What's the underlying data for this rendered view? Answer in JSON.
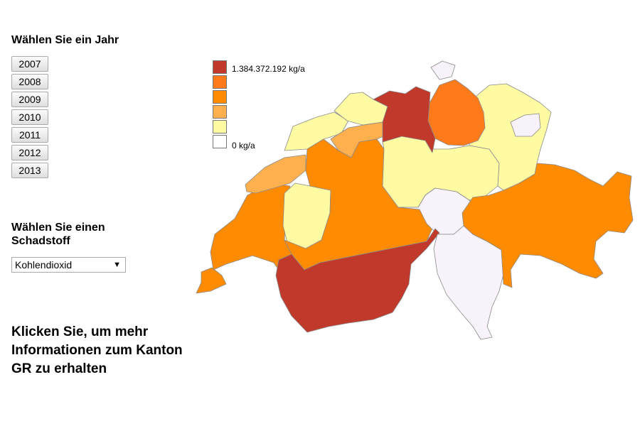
{
  "sidebar": {
    "year_heading": "Wählen Sie ein Jahr",
    "years": [
      "2007",
      "2008",
      "2009",
      "2010",
      "2011",
      "2012",
      "2013"
    ],
    "pollutant_heading": "Wählen Sie einen Schadstoff",
    "pollutant_selected": "Kohlendioxid",
    "cta_text": "Klicken Sie, um mehr Informationen zum Kanton GR zu erhalten"
  },
  "legend": {
    "max_label": "1.384.372.192 kg/a",
    "min_label": "0 kg/a",
    "scale_colors": [
      "#c0392b",
      "#fe7a1a",
      "#fe8b02",
      "#feb04e",
      "#fefba3",
      "#ffffff"
    ]
  },
  "map": {
    "regions": [
      {
        "region": "VS",
        "color": "#c0392b"
      },
      {
        "region": "SH-ZH-north",
        "color": "#c0392b"
      },
      {
        "region": "TG",
        "color": "#fe7a1a"
      },
      {
        "region": "BE",
        "color": "#fe8b02"
      },
      {
        "region": "VD",
        "color": "#fe8b02"
      },
      {
        "region": "GR",
        "color": "#fe8b02"
      },
      {
        "region": "FR",
        "color": "#fefba3"
      },
      {
        "region": "BL-BS",
        "color": "#fefba3"
      },
      {
        "region": "AG-LU-ZG",
        "color": "#fefba3"
      },
      {
        "region": "SG",
        "color": "#fefba3"
      },
      {
        "region": "SO",
        "color": "#feb04e"
      },
      {
        "region": "NE",
        "color": "#feb04e"
      },
      {
        "region": "JU",
        "color": "#fefba3"
      },
      {
        "region": "GE",
        "color": "#feb04e"
      },
      {
        "region": "UR-SZ",
        "color": "#f8f2fa"
      },
      {
        "region": "TI",
        "color": "#f8f2fa"
      },
      {
        "region": "AR-AI",
        "color": "#f8f2fa"
      }
    ]
  }
}
